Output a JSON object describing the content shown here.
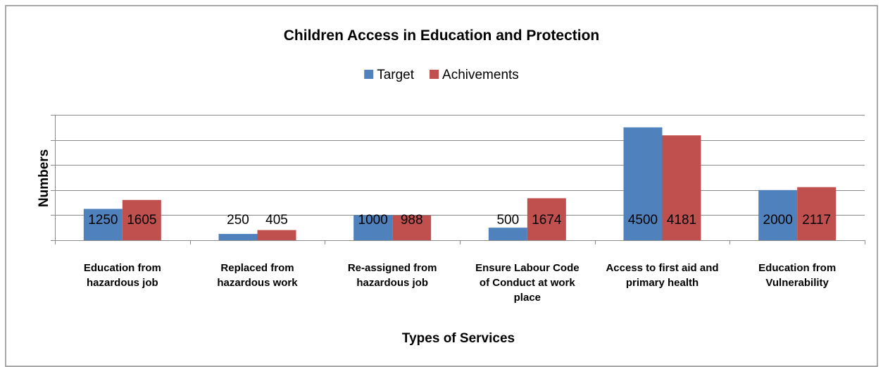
{
  "chart_data": {
    "type": "bar",
    "title": "Children Access in Education and Protection",
    "xlabel": "Types of Services",
    "ylabel": "Numbers",
    "ylim": [
      0,
      5000
    ],
    "y_tick_step": 1000,
    "y_tick_labels_shown": false,
    "grid": true,
    "legend_position": "top",
    "categories": [
      [
        "Education from",
        "hazardous job"
      ],
      [
        "Replaced from",
        "hazardous work"
      ],
      [
        "Re-assigned from",
        "hazardous job"
      ],
      [
        "Ensure Labour Code",
        "of Conduct at work",
        "place"
      ],
      [
        "Access to first aid and",
        "primary health"
      ],
      [
        "Education from",
        "Vulnerability"
      ]
    ],
    "series": [
      {
        "name": "Target",
        "color": "#4f81bd",
        "values": [
          1250,
          250,
          1000,
          500,
          4500,
          2000
        ]
      },
      {
        "name": "Achivements",
        "color": "#c0504d",
        "values": [
          1605,
          405,
          988,
          1674,
          4181,
          2117
        ]
      }
    ]
  }
}
